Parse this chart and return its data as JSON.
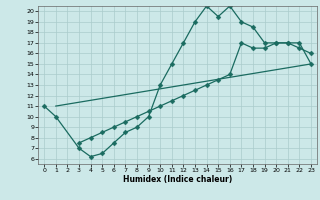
{
  "xlabel": "Humidex (Indice chaleur)",
  "bg_color": "#cce8e8",
  "grid_color": "#aacccc",
  "line_color": "#1a6b60",
  "xlim": [
    -0.5,
    23.5
  ],
  "ylim": [
    5.5,
    20.5
  ],
  "xticks": [
    0,
    1,
    2,
    3,
    4,
    5,
    6,
    7,
    8,
    9,
    10,
    11,
    12,
    13,
    14,
    15,
    16,
    17,
    18,
    19,
    20,
    21,
    22,
    23
  ],
  "yticks": [
    6,
    7,
    8,
    9,
    10,
    11,
    12,
    13,
    14,
    15,
    16,
    17,
    18,
    19,
    20
  ],
  "line1_x": [
    0,
    1,
    3,
    4,
    5,
    6,
    7,
    8,
    9,
    10,
    11,
    12,
    13,
    14,
    15,
    16,
    17,
    18,
    19,
    20,
    21,
    22,
    23
  ],
  "line1_y": [
    11,
    10,
    7,
    6.2,
    6.5,
    7.5,
    8.5,
    9.0,
    10.0,
    13.0,
    15.0,
    17.0,
    19.0,
    20.5,
    19.5,
    20.5,
    19.0,
    18.5,
    17.0,
    17.0,
    17.0,
    16.5,
    16.0
  ],
  "line2_x": [
    3,
    4,
    5,
    6,
    7,
    8,
    9,
    10,
    11,
    12,
    13,
    14,
    15,
    16,
    17,
    18,
    19,
    20,
    21,
    22,
    23
  ],
  "line2_y": [
    7.5,
    8.0,
    8.5,
    9.0,
    9.5,
    10.0,
    10.5,
    11.0,
    11.5,
    12.0,
    12.5,
    13.0,
    13.5,
    14.0,
    17.0,
    16.5,
    16.5,
    17.0,
    17.0,
    17.0,
    15.0
  ],
  "line3_x": [
    1,
    23
  ],
  "line3_y": [
    11.0,
    15.0
  ],
  "marker_size": 2.5,
  "linewidth": 0.9
}
